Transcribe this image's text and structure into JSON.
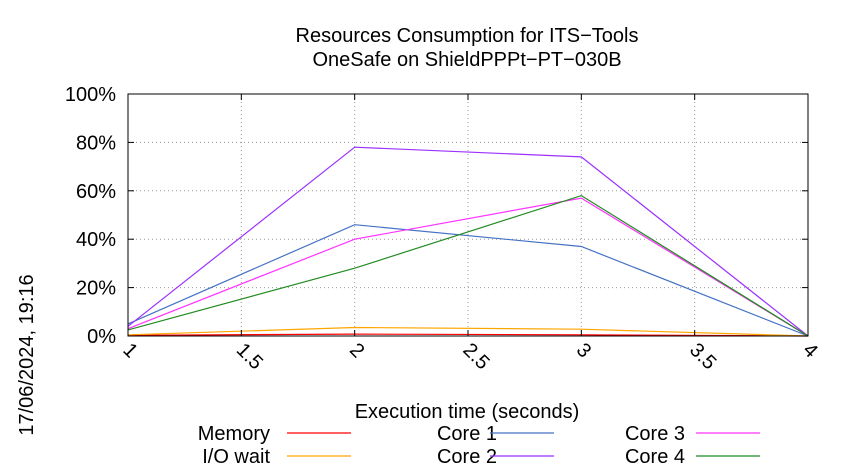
{
  "chart_data": {
    "type": "line",
    "title": "Resources Consumption for ITS−Tools",
    "subtitle": "OneSafe on ShieldPPPt−PT−030B",
    "xlabel": "Execution time (seconds)",
    "ylabel": "",
    "side_label": "17/06/2024, 19:16",
    "xlim": [
      1,
      4
    ],
    "ylim": [
      0,
      100
    ],
    "x_ticks": [
      "1",
      "1.5",
      "2",
      "2.5",
      "3",
      "3.5",
      "4"
    ],
    "y_ticks": [
      "0%",
      "20%",
      "40%",
      "60%",
      "80%",
      "100%"
    ],
    "grid": true,
    "legend_position": "bottom",
    "series": [
      {
        "name": "Memory",
        "color": "#ff0000",
        "x": [
          1,
          2,
          3,
          4
        ],
        "y": [
          0.3,
          0.8,
          0.5,
          0
        ]
      },
      {
        "name": "I/O wait",
        "color": "#ffa500",
        "x": [
          1,
          2,
          3,
          4
        ],
        "y": [
          0.5,
          3.5,
          2.8,
          0
        ]
      },
      {
        "name": "Core 1",
        "color": "#4472c4",
        "x": [
          1,
          2,
          3,
          4
        ],
        "y": [
          5,
          46,
          37,
          0
        ]
      },
      {
        "name": "Core 2",
        "color": "#9b30ff",
        "x": [
          1,
          2,
          3,
          4
        ],
        "y": [
          4,
          78,
          74,
          0
        ]
      },
      {
        "name": "Core 3",
        "color": "#ff33ff",
        "x": [
          1,
          2,
          3,
          4
        ],
        "y": [
          3,
          40,
          57,
          0
        ]
      },
      {
        "name": "Core 4",
        "color": "#228b22",
        "x": [
          1,
          2,
          3,
          4
        ],
        "y": [
          2.5,
          28,
          58,
          0
        ]
      }
    ]
  }
}
